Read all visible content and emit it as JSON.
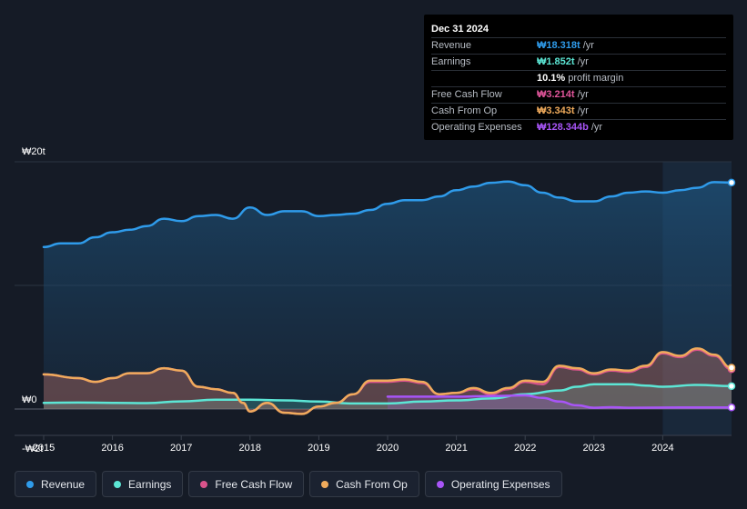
{
  "tooltip": {
    "date": "Dec 31 2024",
    "rows": [
      {
        "label": "Revenue",
        "value": "₩18.318t",
        "unit": "/yr",
        "color": "#2f9bea"
      },
      {
        "label": "Earnings",
        "value": "₩1.852t",
        "unit": "/yr",
        "color": "#5ce6d5"
      },
      {
        "label": "",
        "value": "10.1%",
        "unit": "profit margin",
        "color": "#ffffff"
      },
      {
        "label": "Free Cash Flow",
        "value": "₩3.214t",
        "unit": "/yr",
        "color": "#e0559a"
      },
      {
        "label": "Cash From Op",
        "value": "₩3.343t",
        "unit": "/yr",
        "color": "#f0ab5c"
      },
      {
        "label": "Operating Expenses",
        "value": "₩128.344b",
        "unit": "/yr",
        "color": "#a855f7"
      }
    ]
  },
  "legend": [
    {
      "label": "Revenue",
      "color": "#2f9bea"
    },
    {
      "label": "Earnings",
      "color": "#5ce6d5"
    },
    {
      "label": "Free Cash Flow",
      "color": "#d9538b"
    },
    {
      "label": "Cash From Op",
      "color": "#f0ab5c"
    },
    {
      "label": "Operating Expenses",
      "color": "#a855f7"
    }
  ],
  "chart_data": {
    "type": "area",
    "title": "",
    "y_tick_labels": [
      "₩20t",
      "₩0",
      "-₩2t"
    ],
    "y_tick_values": [
      20,
      0,
      -2
    ],
    "ylim": [
      -2,
      20
    ],
    "xlim": [
      2015,
      2025.0
    ],
    "x_tick_labels": [
      "2015",
      "2016",
      "2017",
      "2018",
      "2019",
      "2020",
      "2021",
      "2022",
      "2023",
      "2024"
    ],
    "x_tick_values": [
      2015,
      2016,
      2017,
      2018,
      2019,
      2020,
      2021,
      2022,
      2023,
      2024
    ],
    "highlight_start": 2024.0,
    "unit": "₩ trillion",
    "series": [
      {
        "name": "Revenue",
        "color": "#2f9bea",
        "points": [
          [
            2015.0,
            13.1
          ],
          [
            2015.25,
            13.4
          ],
          [
            2015.5,
            13.4
          ],
          [
            2015.75,
            13.9
          ],
          [
            2016.0,
            14.3
          ],
          [
            2016.25,
            14.5
          ],
          [
            2016.5,
            14.8
          ],
          [
            2016.75,
            15.4
          ],
          [
            2017.0,
            15.2
          ],
          [
            2017.25,
            15.6
          ],
          [
            2017.5,
            15.7
          ],
          [
            2017.75,
            15.4
          ],
          [
            2018.0,
            16.3
          ],
          [
            2018.25,
            15.7
          ],
          [
            2018.5,
            16.0
          ],
          [
            2018.75,
            16.0
          ],
          [
            2019.0,
            15.6
          ],
          [
            2019.25,
            15.7
          ],
          [
            2019.5,
            15.8
          ],
          [
            2019.75,
            16.1
          ],
          [
            2020.0,
            16.6
          ],
          [
            2020.25,
            16.9
          ],
          [
            2020.5,
            16.9
          ],
          [
            2020.75,
            17.2
          ],
          [
            2021.0,
            17.7
          ],
          [
            2021.25,
            18.0
          ],
          [
            2021.5,
            18.3
          ],
          [
            2021.75,
            18.4
          ],
          [
            2022.0,
            18.1
          ],
          [
            2022.25,
            17.5
          ],
          [
            2022.5,
            17.1
          ],
          [
            2022.75,
            16.8
          ],
          [
            2023.0,
            16.8
          ],
          [
            2023.25,
            17.2
          ],
          [
            2023.5,
            17.5
          ],
          [
            2023.75,
            17.6
          ],
          [
            2024.0,
            17.5
          ],
          [
            2024.25,
            17.7
          ],
          [
            2024.5,
            17.9
          ],
          [
            2024.75,
            18.35
          ],
          [
            2025.0,
            18.318
          ]
        ]
      },
      {
        "name": "Earnings",
        "color": "#5ce6d5",
        "points": [
          [
            2015.0,
            0.5
          ],
          [
            2015.5,
            0.52
          ],
          [
            2016.0,
            0.5
          ],
          [
            2016.5,
            0.48
          ],
          [
            2017.0,
            0.62
          ],
          [
            2017.5,
            0.75
          ],
          [
            2018.0,
            0.75
          ],
          [
            2018.5,
            0.7
          ],
          [
            2019.0,
            0.6
          ],
          [
            2019.5,
            0.45
          ],
          [
            2020.0,
            0.45
          ],
          [
            2020.5,
            0.6
          ],
          [
            2021.0,
            0.7
          ],
          [
            2021.5,
            0.85
          ],
          [
            2022.0,
            1.2
          ],
          [
            2022.5,
            1.5
          ],
          [
            2022.75,
            1.8
          ],
          [
            2023.0,
            2.0
          ],
          [
            2023.5,
            2.0
          ],
          [
            2023.75,
            1.9
          ],
          [
            2024.0,
            1.8
          ],
          [
            2024.5,
            1.95
          ],
          [
            2025.0,
            1.852
          ]
        ]
      },
      {
        "name": "Free Cash Flow",
        "color": "#d9538b",
        "points": [
          [
            2015.0,
            2.8
          ],
          [
            2015.5,
            2.5
          ],
          [
            2015.75,
            2.2
          ],
          [
            2016.0,
            2.5
          ],
          [
            2016.25,
            2.9
          ],
          [
            2016.5,
            2.9
          ],
          [
            2016.75,
            3.3
          ],
          [
            2017.0,
            3.1
          ],
          [
            2017.25,
            1.8
          ],
          [
            2017.5,
            1.6
          ],
          [
            2017.75,
            1.3
          ],
          [
            2017.9,
            0.5
          ],
          [
            2018.0,
            -0.2
          ],
          [
            2018.25,
            0.5
          ],
          [
            2018.5,
            -0.3
          ],
          [
            2018.75,
            -0.4
          ],
          [
            2019.0,
            0.2
          ],
          [
            2019.25,
            0.5
          ],
          [
            2019.5,
            1.2
          ],
          [
            2019.75,
            2.2
          ],
          [
            2020.0,
            2.2
          ],
          [
            2020.25,
            2.3
          ],
          [
            2020.5,
            2.1
          ],
          [
            2020.75,
            1.2
          ],
          [
            2021.0,
            1.3
          ],
          [
            2021.25,
            1.6
          ],
          [
            2021.5,
            1.2
          ],
          [
            2021.75,
            1.6
          ],
          [
            2022.0,
            2.2
          ],
          [
            2022.25,
            2.0
          ],
          [
            2022.5,
            3.4
          ],
          [
            2022.75,
            3.2
          ],
          [
            2023.0,
            2.8
          ],
          [
            2023.25,
            3.1
          ],
          [
            2023.5,
            3.0
          ],
          [
            2023.75,
            3.4
          ],
          [
            2024.0,
            4.5
          ],
          [
            2024.25,
            4.2
          ],
          [
            2024.5,
            4.8
          ],
          [
            2024.75,
            4.3
          ],
          [
            2025.0,
            3.214
          ]
        ]
      },
      {
        "name": "Cash From Op",
        "color": "#f0ab5c",
        "points": [
          [
            2015.0,
            2.8
          ],
          [
            2015.5,
            2.5
          ],
          [
            2015.75,
            2.2
          ],
          [
            2016.0,
            2.5
          ],
          [
            2016.25,
            2.9
          ],
          [
            2016.5,
            2.9
          ],
          [
            2016.75,
            3.3
          ],
          [
            2017.0,
            3.1
          ],
          [
            2017.25,
            1.8
          ],
          [
            2017.5,
            1.6
          ],
          [
            2017.75,
            1.3
          ],
          [
            2017.9,
            0.5
          ],
          [
            2018.0,
            -0.2
          ],
          [
            2018.25,
            0.5
          ],
          [
            2018.5,
            -0.3
          ],
          [
            2018.75,
            -0.4
          ],
          [
            2019.0,
            0.2
          ],
          [
            2019.25,
            0.5
          ],
          [
            2019.5,
            1.2
          ],
          [
            2019.75,
            2.3
          ],
          [
            2020.0,
            2.3
          ],
          [
            2020.25,
            2.4
          ],
          [
            2020.5,
            2.2
          ],
          [
            2020.75,
            1.2
          ],
          [
            2021.0,
            1.3
          ],
          [
            2021.25,
            1.7
          ],
          [
            2021.5,
            1.3
          ],
          [
            2021.75,
            1.7
          ],
          [
            2022.0,
            2.3
          ],
          [
            2022.25,
            2.2
          ],
          [
            2022.5,
            3.5
          ],
          [
            2022.75,
            3.3
          ],
          [
            2023.0,
            2.9
          ],
          [
            2023.25,
            3.2
          ],
          [
            2023.5,
            3.1
          ],
          [
            2023.75,
            3.5
          ],
          [
            2024.0,
            4.6
          ],
          [
            2024.25,
            4.3
          ],
          [
            2024.5,
            4.9
          ],
          [
            2024.75,
            4.4
          ],
          [
            2025.0,
            3.343
          ]
        ]
      },
      {
        "name": "Operating Expenses",
        "color": "#a855f7",
        "points": [
          [
            2020.0,
            1.0
          ],
          [
            2020.5,
            1.0
          ],
          [
            2021.0,
            1.0
          ],
          [
            2021.5,
            1.05
          ],
          [
            2022.0,
            1.1
          ],
          [
            2022.25,
            0.9
          ],
          [
            2022.5,
            0.6
          ],
          [
            2022.75,
            0.3
          ],
          [
            2023.0,
            0.1
          ],
          [
            2023.25,
            0.15
          ],
          [
            2023.5,
            0.1
          ],
          [
            2024.0,
            0.12
          ],
          [
            2024.5,
            0.13
          ],
          [
            2025.0,
            0.128
          ]
        ]
      }
    ]
  }
}
